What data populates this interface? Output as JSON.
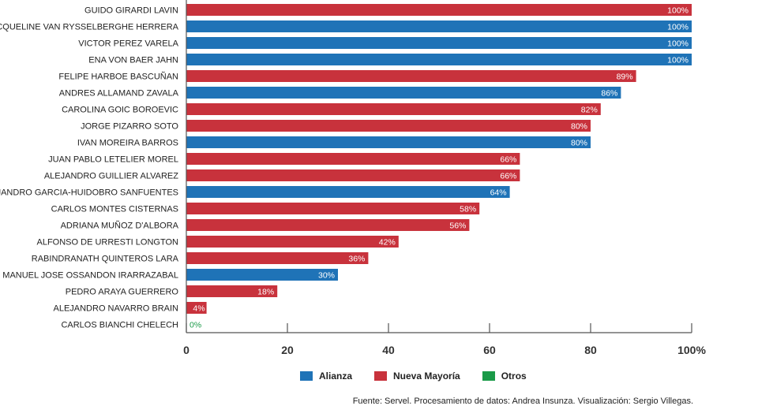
{
  "chart_data": {
    "type": "bar",
    "orientation": "horizontal",
    "categories": [
      "GUIDO GIRARDI LAVIN",
      "JACQUELINE VAN RYSSELBERGHE HERRERA",
      "VICTOR PEREZ VARELA",
      "ENA VON BAER JAHN",
      "FELIPE HARBOE BASCUÑAN",
      "ANDRES ALLAMAND ZAVALA",
      "CAROLINA GOIC BOROEVIC",
      "JORGE PIZARRO SOTO",
      "IVAN MOREIRA BARROS",
      "JUAN PABLO LETELIER MOREL",
      "ALEJANDRO GUILLIER ALVAREZ",
      "ALEJANDRO GARCIA-HUIDOBRO SANFUENTES",
      "CARLOS MONTES CISTERNAS",
      "ADRIANA MUÑOZ D'ALBORA",
      "ALFONSO DE URRESTI LONGTON",
      "RABINDRANATH QUINTEROS LARA",
      "MANUEL JOSE OSSANDON IRARRAZABAL",
      "PEDRO ARAYA GUERRERO",
      "ALEJANDRO NAVARRO BRAIN",
      "CARLOS BIANCHI CHELECH"
    ],
    "values": [
      100,
      100,
      100,
      100,
      89,
      86,
      82,
      80,
      80,
      66,
      66,
      64,
      58,
      56,
      42,
      36,
      30,
      18,
      4,
      0
    ],
    "value_labels": [
      "100%",
      "100%",
      "100%",
      "100%",
      "89%",
      "86%",
      "82%",
      "80%",
      "80%",
      "66%",
      "66%",
      "64%",
      "58%",
      "56%",
      "42%",
      "36%",
      "30%",
      "18%",
      "4%",
      "0%"
    ],
    "groups": [
      "Nueva Mayoría",
      "Alianza",
      "Alianza",
      "Alianza",
      "Nueva Mayoría",
      "Alianza",
      "Nueva Mayoría",
      "Nueva Mayoría",
      "Alianza",
      "Nueva Mayoría",
      "Nueva Mayoría",
      "Alianza",
      "Nueva Mayoría",
      "Nueva Mayoría",
      "Nueva Mayoría",
      "Nueva Mayoría",
      "Alianza",
      "Nueva Mayoría",
      "Nueva Mayoría",
      "Otros"
    ],
    "xlim": [
      0,
      100
    ],
    "xticks": [
      0,
      20,
      40,
      60,
      80,
      100
    ],
    "xtick_labels": [
      "0",
      "20",
      "40",
      "60",
      "80",
      "100%"
    ],
    "legend": [
      {
        "name": "Alianza",
        "color": "#1f73b7"
      },
      {
        "name": "Nueva Mayoría",
        "color": "#c8323c"
      },
      {
        "name": "Otros",
        "color": "#1a9a48"
      }
    ],
    "legend_position": "bottom-center",
    "grid": false
  },
  "source_text": "Fuente: Servel. Procesamiento de datos: Andrea Insunza. Visualización: Sergio Villegas."
}
